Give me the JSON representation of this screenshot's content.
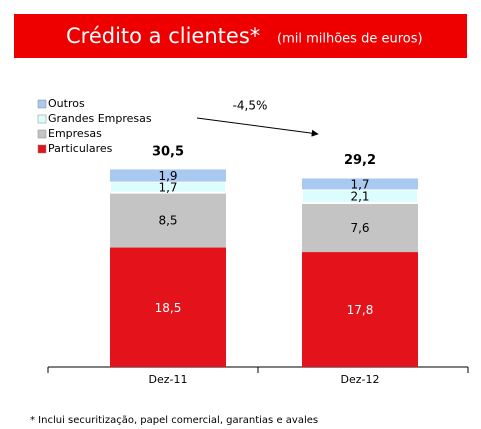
{
  "chart_data": {
    "type": "stacked_bar",
    "title": "Crédito a clientes*",
    "subtitle": "(mil milhões de euros)",
    "categories": [
      "Dez-11",
      "Dez-12"
    ],
    "series": [
      {
        "name": "Particulares",
        "color": "#e3121b",
        "values": [
          18.5,
          17.8
        ],
        "value_labels": [
          "18,5",
          "17,8"
        ]
      },
      {
        "name": "Empresas",
        "color": "#c4c4c4",
        "values": [
          8.5,
          7.6
        ],
        "value_labels": [
          "8,5",
          "7,6"
        ]
      },
      {
        "name": "Grandes Empresas",
        "color": "#dcfdfd",
        "values": [
          1.7,
          2.1
        ],
        "value_labels": [
          "1,7",
          "2,1"
        ]
      },
      {
        "name": "Outros",
        "color": "#a9c9f0",
        "values": [
          1.9,
          1.7
        ],
        "value_labels": [
          "1,9",
          "1,7"
        ]
      }
    ],
    "totals": {
      "values": [
        30.5,
        29.2
      ],
      "value_labels": [
        "30,5",
        "29,2"
      ]
    },
    "annotation": "-4,5%",
    "footnote": "* Inclui securitização, papel comercial, garantias e avales",
    "ylim": [
      0,
      35
    ]
  }
}
